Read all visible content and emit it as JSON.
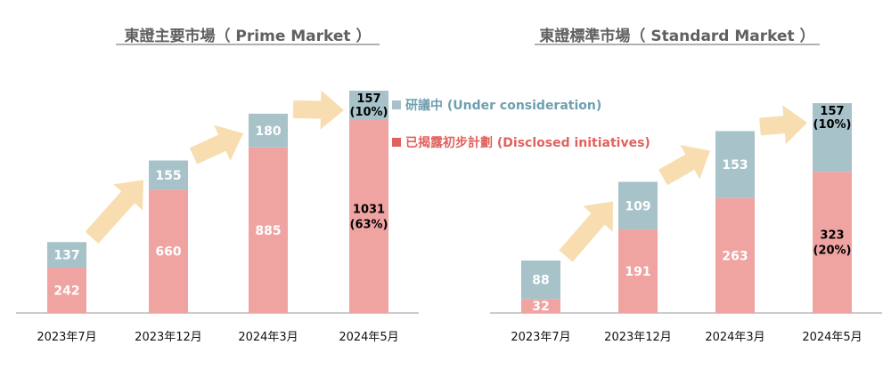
{
  "colors": {
    "disclosed": "#EFA4A2",
    "under_consideration": "#A7C2C8",
    "arrow": "#F7DDB0",
    "axis": "#999999",
    "title": "#606060",
    "legend_disclosed_text": "#E0625E",
    "legend_under_text": "#6E9FAE"
  },
  "legend": {
    "under": "研議中 (Under consideration)",
    "disclosed": "已揭露初步計劃 (Disclosed initiatives)"
  },
  "chart_data": [
    {
      "type": "bar",
      "stacked": true,
      "title": "東證主要市場（ Prime Market ）",
      "categories": [
        "2023年7月",
        "2023年12月",
        "2024年3月",
        "2024年5月"
      ],
      "series": [
        {
          "name": "已揭露初步計劃 (Disclosed initiatives)",
          "values": [
            242,
            660,
            885,
            1031
          ]
        },
        {
          "name": "研議中 (Under consideration)",
          "values": [
            137,
            155,
            180,
            157
          ]
        }
      ],
      "bar_labels": {
        "disclosed": [
          "242",
          "660",
          "885",
          "1031"
        ],
        "under": [
          "137",
          "155",
          "180",
          "157"
        ]
      },
      "percent_labels": {
        "disclosed": "(63%)",
        "under": "(10%)"
      },
      "ylim": [
        0,
        1188
      ],
      "legend_position": "right"
    },
    {
      "type": "bar",
      "stacked": true,
      "title": "東證標準市場（ Standard Market ）",
      "categories": [
        "2023年7月",
        "2023年12月",
        "2024年3月",
        "2024年5月"
      ],
      "series": [
        {
          "name": "已揭露初步計劃 (Disclosed initiatives)",
          "values": [
            32,
            191,
            263,
            323
          ]
        },
        {
          "name": "研議中 (Under consideration)",
          "values": [
            88,
            109,
            153,
            157
          ]
        }
      ],
      "bar_labels": {
        "disclosed": [
          "32",
          "191",
          "263",
          "323"
        ],
        "under": [
          "88",
          "109",
          "153",
          "157"
        ]
      },
      "percent_labels": {
        "disclosed": "(20%)",
        "under": "(10%)"
      },
      "ylim": [
        0,
        480
      ]
    }
  ]
}
